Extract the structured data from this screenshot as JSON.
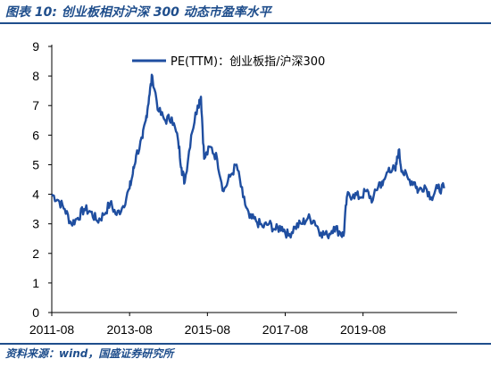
{
  "header": {
    "title": "图表 10:  创业板相对沪深 300 动态市盈率水平"
  },
  "footer": {
    "source": "资料来源：wind，国盛证券研究所"
  },
  "chart_data": {
    "type": "line",
    "title": "图表 10:  创业板相对沪深 300 动态市盈率水平",
    "xlabel": "",
    "ylabel": "",
    "ylim": [
      0,
      9
    ],
    "yticks": [
      0,
      1,
      2,
      3,
      4,
      5,
      6,
      7,
      8,
      9
    ],
    "xticks": [
      "2011-08",
      "2013-08",
      "2015-08",
      "2017-08",
      "2019-08"
    ],
    "grid": false,
    "legend": "top-center",
    "line_color": "#1f4ea0",
    "series": [
      {
        "name": "PE(TTM)：创业板指/沪深300",
        "x": [
          "2011-08",
          "2011-10",
          "2011-12",
          "2012-02",
          "2012-04",
          "2012-06",
          "2012-08",
          "2012-10",
          "2012-12",
          "2013-02",
          "2013-04",
          "2013-06",
          "2013-08",
          "2013-09",
          "2013-10",
          "2013-12",
          "2014-01",
          "2014-02",
          "2014-03",
          "2014-05",
          "2014-07",
          "2014-09",
          "2014-11",
          "2014-12",
          "2015-01",
          "2015-03",
          "2015-05",
          "2015-06",
          "2015-07",
          "2015-09",
          "2015-11",
          "2016-01",
          "2016-03",
          "2016-05",
          "2016-07",
          "2016-09",
          "2016-11",
          "2017-01",
          "2017-03",
          "2017-05",
          "2017-07",
          "2017-09",
          "2017-11",
          "2018-01",
          "2018-03",
          "2018-05",
          "2018-07",
          "2018-09",
          "2018-11",
          "2019-01",
          "2019-02",
          "2019-03",
          "2019-05",
          "2019-07",
          "2019-09",
          "2019-11",
          "2020-01",
          "2020-02",
          "2020-04",
          "2020-06",
          "2020-07",
          "2020-08",
          "2020-10",
          "2020-12",
          "2021-01",
          "2021-03",
          "2021-05",
          "2021-07",
          "2021-09"
        ],
        "values": [
          4.0,
          3.8,
          3.5,
          3.0,
          3.2,
          3.5,
          3.4,
          3.1,
          3.3,
          3.7,
          3.3,
          3.6,
          4.2,
          4.7,
          5.3,
          5.9,
          6.5,
          7.3,
          8.0,
          6.8,
          6.5,
          6.6,
          5.8,
          4.9,
          4.4,
          6.0,
          7.0,
          7.3,
          5.2,
          5.6,
          5.2,
          4.1,
          4.6,
          5.0,
          3.9,
          3.2,
          3.1,
          2.9,
          3.0,
          2.8,
          2.9,
          2.6,
          2.9,
          3.0,
          3.2,
          3.1,
          2.7,
          2.6,
          2.9,
          2.7,
          2.6,
          3.9,
          4.0,
          3.9,
          4.1,
          3.8,
          4.4,
          4.3,
          4.9,
          4.8,
          5.5,
          4.8,
          4.5,
          4.4,
          4.1,
          4.3,
          3.9,
          4.2,
          4.2
        ]
      }
    ]
  }
}
